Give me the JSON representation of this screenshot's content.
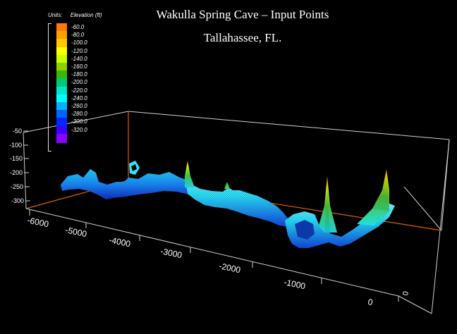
{
  "title": "Wakulla Spring Cave – Input Points",
  "subtitle": "Tallahassee, FL.",
  "legend": {
    "units_label": "Units:",
    "quantity_label": "Elevation (ft)",
    "entries": [
      {
        "label": "-60.0",
        "color": "#ff7a00"
      },
      {
        "label": "-80.0",
        "color": "#ff9f00"
      },
      {
        "label": "-100.0",
        "color": "#ffc800"
      },
      {
        "label": "-120.0",
        "color": "#ffff00"
      },
      {
        "label": "-140.0",
        "color": "#c8ff00"
      },
      {
        "label": "-160.0",
        "color": "#8cd200"
      },
      {
        "label": "-180.0",
        "color": "#3cb800"
      },
      {
        "label": "-200.0",
        "color": "#00c878"
      },
      {
        "label": "-220.0",
        "color": "#00e6c8"
      },
      {
        "label": "-240.0",
        "color": "#00ffff"
      },
      {
        "label": "-260.0",
        "color": "#00b4ff"
      },
      {
        "label": "-280.0",
        "color": "#0064ff"
      },
      {
        "label": "-300.0",
        "color": "#0028ff"
      },
      {
        "label": "-320.0",
        "color": "#3c00ff"
      },
      {
        "label": "",
        "color": "#8c00ff"
      }
    ]
  },
  "axes": {
    "z_ticks": [
      "-50",
      "-100",
      "-150",
      "-200",
      "-250",
      "-300"
    ],
    "x_ticks": [
      "-6000",
      "-5000",
      "-4000",
      "-3000",
      "-2000",
      "-1000",
      "0"
    ],
    "y_tick": "0"
  },
  "colors": {
    "box": "#cfcfcf",
    "axis_orange": "#e06000",
    "background": "#000000"
  }
}
